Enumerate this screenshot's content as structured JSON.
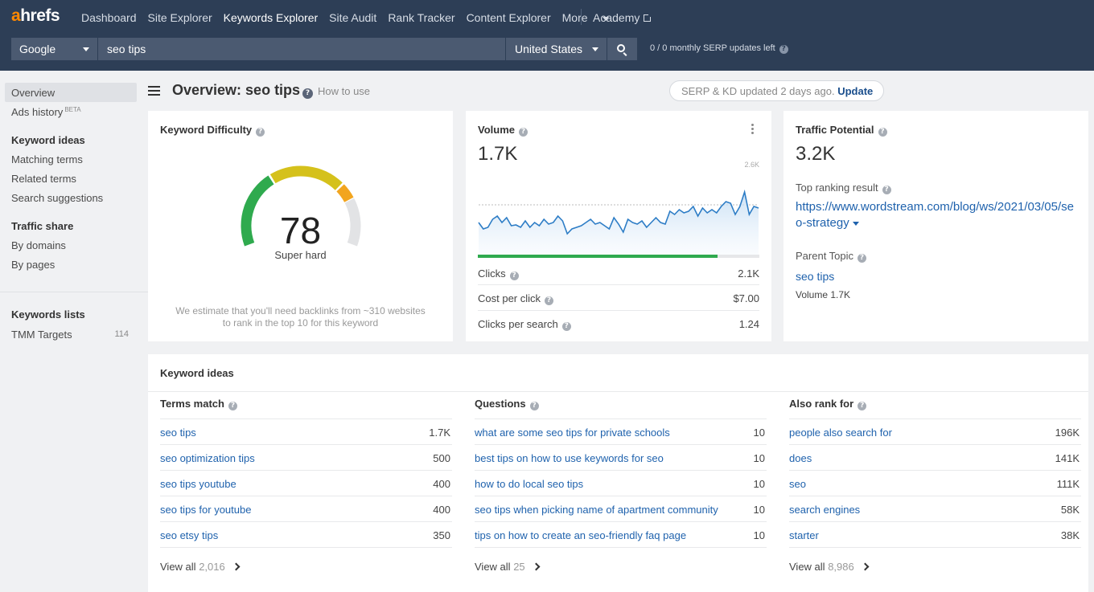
{
  "nav": {
    "logo_accent": "a",
    "logo_rest": "hrefs",
    "links": [
      "Dashboard",
      "Site Explorer",
      "Keywords Explorer",
      "Site Audit",
      "Rank Tracker",
      "Content Explorer",
      "More"
    ],
    "active_link": "Keywords Explorer",
    "academy": "Academy"
  },
  "search": {
    "engine": "Google",
    "query": "seo tips",
    "country": "United States",
    "serp_updates": "0 / 0 monthly SERP updates left"
  },
  "sidebar": {
    "overview": "Overview",
    "ads_history": "Ads history",
    "beta": "BETA",
    "keyword_ideas_head": "Keyword ideas",
    "matching_terms": "Matching terms",
    "related_terms": "Related terms",
    "search_suggestions": "Search suggestions",
    "traffic_share_head": "Traffic share",
    "by_domains": "By domains",
    "by_pages": "By pages",
    "keywords_lists_head": "Keywords lists",
    "list_name": "TMM Targets",
    "list_count": "114"
  },
  "header": {
    "title": "Overview: seo tips",
    "how_to_use": "How to use",
    "serp_status": "SERP & KD updated 2 days ago.",
    "update": "Update"
  },
  "kd": {
    "title": "Keyword Difficulty",
    "value": "78",
    "label": "Super hard",
    "note_line1": "We estimate that you'll need backlinks from ~310 websites",
    "note_line2": "to rank in the top 10 for this keyword",
    "score": 78,
    "colors": {
      "red": "#d93025",
      "green": "#1fa240",
      "yellow": "#d9c300",
      "orange": "#f5a623",
      "grey": "#e2e3e5"
    }
  },
  "volume": {
    "title": "Volume",
    "value": "1.7K",
    "max_label": "2.6K",
    "progress_fraction": 0.85,
    "clicks_label": "Clicks",
    "clicks_value": "2.1K",
    "cpc_label": "Cost per click",
    "cpc_value": "$7.00",
    "cps_label": "Clicks per search",
    "cps_value": "1.24"
  },
  "traffic": {
    "title": "Traffic Potential",
    "value": "3.2K",
    "top_ranking_label": "Top ranking result",
    "top_url": "https://www.wordstream.com/blog/ws/2021/03/05/seo-strategy",
    "parent_topic_label": "Parent Topic",
    "parent_topic": "seo tips",
    "parent_volume": "Volume 1.7K"
  },
  "keyword_ideas": {
    "title": "Keyword ideas",
    "columns": [
      {
        "head": "Terms match",
        "rows": [
          {
            "kw": "seo tips",
            "num": "1.7K"
          },
          {
            "kw": "seo optimization tips",
            "num": "500"
          },
          {
            "kw": "seo tips youtube",
            "num": "400"
          },
          {
            "kw": "seo tips for youtube",
            "num": "400"
          },
          {
            "kw": "seo etsy tips",
            "num": "350"
          }
        ],
        "view_all": "View all",
        "view_all_count": "2,016"
      },
      {
        "head": "Questions",
        "rows": [
          {
            "kw": "what are some seo tips for private schools",
            "num": "10"
          },
          {
            "kw": "best tips on how to use keywords for seo",
            "num": "10"
          },
          {
            "kw": "how to do local seo tips",
            "num": "10"
          },
          {
            "kw": "seo tips when picking name of apartment community",
            "num": "10"
          },
          {
            "kw": "tips on how to create an seo-friendly faq page",
            "num": "10"
          }
        ],
        "view_all": "View all",
        "view_all_count": "25"
      },
      {
        "head": "Also rank for",
        "rows": [
          {
            "kw": "people also search for",
            "num": "196K"
          },
          {
            "kw": "does",
            "num": "141K"
          },
          {
            "kw": "seo",
            "num": "111K"
          },
          {
            "kw": "search engines",
            "num": "58K"
          },
          {
            "kw": "starter",
            "num": "38K"
          }
        ],
        "view_all": "View all",
        "view_all_count": "8,986"
      }
    ]
  }
}
